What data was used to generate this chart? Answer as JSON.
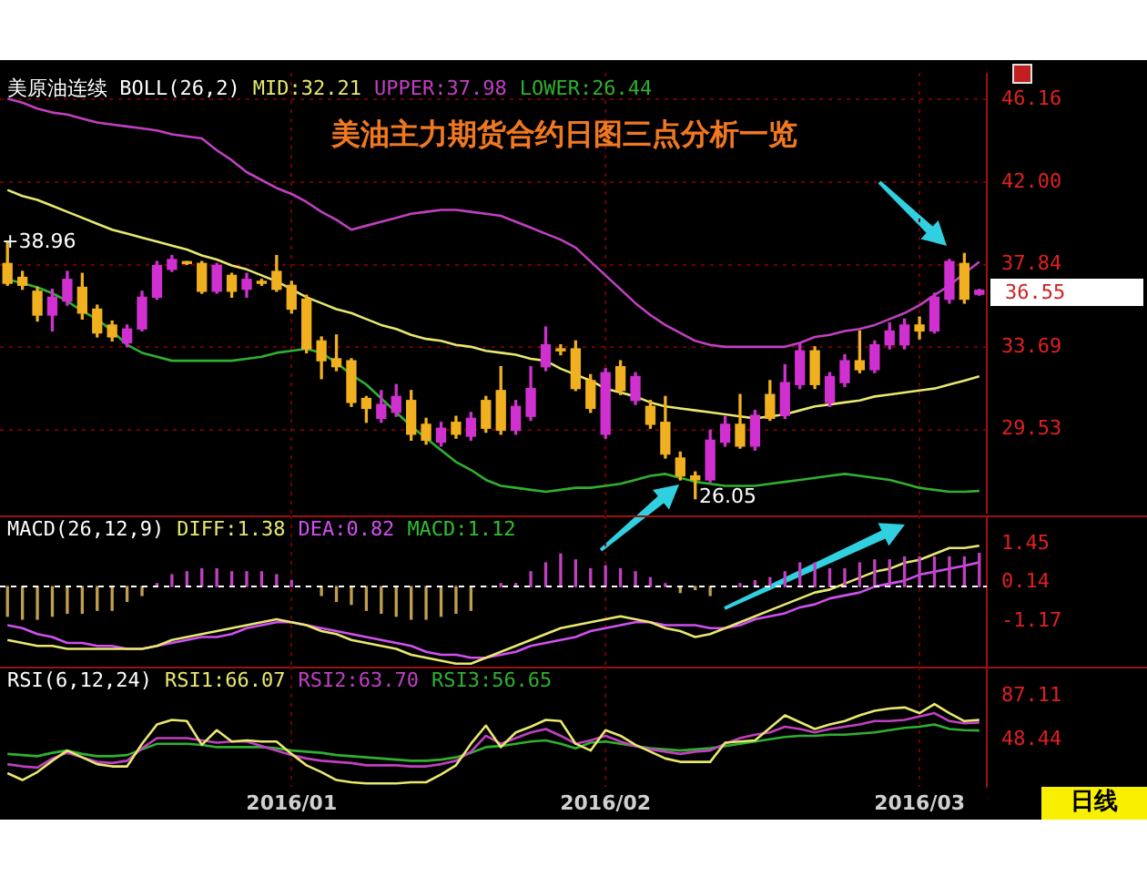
{
  "chart_data": [
    {
      "type": "candlestick",
      "title": "美油主力期货合约日图三点分析一览",
      "subtitle": "美原油连续 BOLL(26,2)",
      "categories": [
        null,
        null,
        null,
        null,
        null,
        null,
        null,
        null,
        null,
        null,
        null,
        null,
        null,
        null,
        null,
        null,
        null,
        null,
        null,
        "2016/01",
        null,
        null,
        null,
        null,
        null,
        null,
        null,
        null,
        null,
        null,
        null,
        null,
        null,
        null,
        null,
        null,
        null,
        null,
        null,
        null,
        "2016/02",
        null,
        null,
        null,
        null,
        null,
        null,
        null,
        null,
        null,
        null,
        null,
        null,
        null,
        null,
        null,
        null,
        null,
        null,
        null,
        null,
        "2016/03",
        null,
        null,
        null,
        null
      ],
      "ohlc": [
        [
          37.9,
          38.96,
          36.8,
          36.9
        ],
        [
          37.2,
          37.5,
          36.6,
          36.8
        ],
        [
          36.5,
          36.7,
          35.0,
          35.3
        ],
        [
          35.3,
          36.6,
          34.5,
          36.2
        ],
        [
          36.0,
          37.5,
          35.8,
          37.1
        ],
        [
          36.7,
          37.4,
          35.1,
          35.4
        ],
        [
          35.6,
          35.8,
          34.2,
          34.4
        ],
        [
          34.8,
          35.0,
          34.0,
          34.2
        ],
        [
          33.9,
          34.8,
          33.7,
          34.6
        ],
        [
          34.6,
          36.5,
          34.5,
          36.2
        ],
        [
          36.2,
          38.0,
          36.1,
          37.8
        ],
        [
          37.6,
          38.3,
          37.5,
          38.1
        ],
        [
          37.95,
          38.0,
          37.85,
          37.9
        ],
        [
          37.9,
          38.0,
          36.4,
          36.5
        ],
        [
          36.5,
          37.9,
          36.4,
          37.8
        ],
        [
          37.3,
          37.4,
          36.2,
          36.5
        ],
        [
          36.6,
          37.4,
          36.2,
          37.1
        ],
        [
          37.0,
          37.1,
          36.8,
          36.9
        ],
        [
          37.5,
          38.3,
          36.5,
          36.6
        ],
        [
          36.8,
          37.0,
          35.4,
          35.6
        ],
        [
          36.1,
          36.3,
          33.4,
          33.6
        ],
        [
          34.0,
          34.2,
          32.1,
          33.0
        ],
        [
          33.1,
          34.3,
          32.5,
          32.7
        ],
        [
          33.0,
          33.1,
          30.7,
          30.9
        ],
        [
          31.1,
          31.2,
          29.9,
          30.6
        ],
        [
          30.1,
          31.5,
          29.9,
          30.8
        ],
        [
          30.4,
          31.8,
          30.2,
          31.2
        ],
        [
          31.0,
          31.5,
          29.0,
          29.3
        ],
        [
          29.8,
          30.1,
          28.8,
          29.0
        ],
        [
          28.9,
          29.9,
          28.7,
          29.6
        ],
        [
          29.9,
          30.2,
          29.1,
          29.3
        ],
        [
          29.2,
          30.4,
          29.0,
          30.1
        ],
        [
          31.0,
          31.2,
          29.4,
          29.6
        ],
        [
          31.5,
          32.7,
          29.3,
          29.5
        ],
        [
          29.5,
          31.0,
          29.3,
          30.7
        ],
        [
          30.2,
          32.7,
          30.0,
          31.6
        ],
        [
          32.7,
          34.7,
          32.5,
          33.8
        ],
        [
          33.6,
          33.8,
          33.3,
          33.5
        ],
        [
          33.6,
          34.0,
          31.5,
          31.6
        ],
        [
          32.0,
          32.3,
          30.4,
          30.6
        ],
        [
          29.3,
          32.6,
          29.1,
          32.4
        ],
        [
          32.7,
          33.0,
          31.3,
          31.5
        ],
        [
          31.0,
          32.4,
          30.8,
          32.2
        ],
        [
          30.7,
          31.0,
          29.6,
          29.8
        ],
        [
          29.9,
          31.2,
          28.1,
          28.3
        ],
        [
          28.1,
          28.4,
          27.0,
          27.2
        ],
        [
          27.2,
          27.4,
          26.05,
          27.0
        ],
        [
          27.0,
          29.5,
          26.9,
          29.0
        ],
        [
          28.9,
          30.2,
          28.7,
          29.8
        ],
        [
          29.8,
          31.3,
          28.6,
          28.7
        ],
        [
          28.7,
          30.5,
          28.5,
          30.25
        ],
        [
          31.3,
          32.0,
          30.0,
          30.1
        ],
        [
          30.25,
          32.8,
          30.1,
          31.9
        ],
        [
          31.8,
          33.9,
          31.6,
          33.5
        ],
        [
          33.5,
          33.7,
          31.6,
          31.8
        ],
        [
          30.9,
          32.4,
          30.7,
          32.2
        ],
        [
          31.9,
          33.3,
          31.7,
          33.0
        ],
        [
          33.0,
          34.5,
          32.4,
          32.55
        ],
        [
          32.55,
          34.0,
          32.4,
          33.8
        ],
        [
          33.8,
          34.9,
          33.6,
          34.5
        ],
        [
          33.8,
          35.1,
          33.6,
          34.8
        ],
        [
          34.8,
          35.2,
          34.1,
          34.5
        ],
        [
          34.5,
          36.4,
          34.4,
          36.2
        ],
        [
          36.1,
          38.1,
          35.9,
          38.0
        ],
        [
          37.9,
          38.4,
          35.9,
          36.1
        ],
        [
          36.35,
          36.6,
          36.3,
          36.55
        ]
      ],
      "colors": [
        "#f0b020",
        "#f0b020",
        "#f0b020",
        "#d030d0",
        "#d030d0",
        "#f0b020",
        "#f0b020",
        "#f0b020",
        "#d030d0",
        "#d030d0",
        "#d030d0",
        "#d030d0",
        "#f0b020",
        "#f0b020",
        "#d030d0",
        "#f0b020",
        "#d030d0",
        "#f0b020",
        "#f0b020",
        "#f0b020",
        "#f0b020",
        "#f0b020",
        "#f0b020",
        "#f0b020",
        "#f0b020",
        "#d030d0",
        "#d030d0",
        "#f0b020",
        "#f0b020",
        "#d030d0",
        "#f0b020",
        "#d030d0",
        "#f0b020",
        "#f0b020",
        "#d030d0",
        "#d030d0",
        "#d030d0",
        "#f0b020",
        "#f0b020",
        "#f0b020",
        "#d030d0",
        "#f0b020",
        "#d030d0",
        "#f0b020",
        "#f0b020",
        "#f0b020",
        "#f0b020",
        "#d030d0",
        "#d030d0",
        "#f0b020",
        "#d030d0",
        "#f0b020",
        "#d030d0",
        "#d030d0",
        "#f0b020",
        "#d030d0",
        "#d030d0",
        "#f0b020",
        "#d030d0",
        "#d030d0",
        "#d030d0",
        "#f0b020",
        "#d030d0",
        "#d030d0",
        "#f0b020",
        "#d030d0"
      ],
      "series": [
        {
          "name": "MID:32.21",
          "type": "line",
          "color": "#e8e870",
          "values": [
            41.6,
            41.3,
            41.1,
            40.8,
            40.5,
            40.2,
            39.9,
            39.6,
            39.4,
            39.2,
            39.0,
            38.8,
            38.6,
            38.3,
            38.1,
            37.8,
            37.6,
            37.3,
            37.0,
            36.6,
            36.2,
            35.9,
            35.6,
            35.4,
            35.1,
            34.8,
            34.6,
            34.3,
            34.1,
            34.0,
            33.8,
            33.7,
            33.5,
            33.4,
            33.3,
            33.1,
            33.0,
            32.6,
            32.3,
            32.0,
            31.6,
            31.4,
            31.2,
            30.9,
            30.7,
            30.6,
            30.5,
            30.4,
            30.3,
            30.2,
            30.1,
            30.2,
            30.3,
            30.5,
            30.7,
            30.8,
            30.9,
            31.0,
            31.2,
            31.3,
            31.4,
            31.5,
            31.6,
            31.8,
            32.0,
            32.21
          ]
        },
        {
          "name": "UPPER:37.98",
          "type": "line",
          "color": "#c040c0",
          "values": [
            46.2,
            46.0,
            45.7,
            45.5,
            45.4,
            45.2,
            45.0,
            44.9,
            44.8,
            44.7,
            44.6,
            44.4,
            44.3,
            44.2,
            43.6,
            43.1,
            42.5,
            42.1,
            41.7,
            41.4,
            41.0,
            40.5,
            40.1,
            39.6,
            39.8,
            40.0,
            40.2,
            40.4,
            40.5,
            40.6,
            40.6,
            40.5,
            40.4,
            40.3,
            40.0,
            39.7,
            39.4,
            39.1,
            38.7,
            38.0,
            37.3,
            36.6,
            35.9,
            35.3,
            34.8,
            34.4,
            34.0,
            33.8,
            33.7,
            33.7,
            33.7,
            33.7,
            33.7,
            33.9,
            34.2,
            34.3,
            34.5,
            34.6,
            34.8,
            35.1,
            35.4,
            35.8,
            36.3,
            36.8,
            37.4,
            37.98
          ]
        },
        {
          "name": "LOWER:26.44",
          "type": "line",
          "color": "#30b030",
          "values": [
            37.1,
            36.9,
            36.7,
            36.4,
            36.0,
            35.5,
            35.1,
            34.5,
            33.8,
            33.4,
            33.2,
            33.0,
            33.0,
            33.0,
            33.0,
            33.0,
            33.1,
            33.2,
            33.4,
            33.5,
            33.6,
            33.4,
            32.9,
            32.3,
            31.8,
            31.1,
            30.4,
            29.7,
            29.1,
            28.5,
            27.9,
            27.5,
            27.0,
            26.7,
            26.6,
            26.5,
            26.4,
            26.5,
            26.6,
            26.6,
            26.7,
            26.8,
            27.0,
            27.2,
            27.3,
            27.1,
            26.9,
            26.8,
            26.7,
            26.7,
            26.7,
            26.8,
            26.9,
            27.0,
            27.1,
            27.2,
            27.3,
            27.2,
            27.1,
            27.0,
            26.8,
            26.6,
            26.5,
            26.4,
            26.4,
            26.44
          ]
        }
      ],
      "ylim": [
        25.3,
        47.5
      ],
      "yticks": [
        46.16,
        {
          "value": 42,
          "label": "42.00"
        },
        37.84,
        33.69,
        29.53
      ],
      "grid": true,
      "legend": "top left",
      "tick_labels": "y",
      "annotations": [
        "+38.96",
        "26.05",
        "36.55"
      ]
    },
    {
      "type": "bar",
      "subtitle": "MACD(26,12,9)",
      "categories": [
        null,
        null,
        null,
        null,
        null,
        null,
        null,
        null,
        null,
        null,
        null,
        null,
        null,
        null,
        null,
        null,
        null,
        null,
        null,
        "2016/01",
        null,
        null,
        null,
        null,
        null,
        null,
        null,
        null,
        null,
        null,
        null,
        null,
        null,
        null,
        null,
        null,
        null,
        null,
        null,
        null,
        "2016/02",
        null,
        null,
        null,
        null,
        null,
        null,
        null,
        null,
        null,
        null,
        null,
        null,
        null,
        null,
        null,
        null,
        null,
        null,
        null,
        null,
        "2016/03",
        null,
        null,
        null,
        null
      ],
      "series": [
        {
          "name": "DIFF:1.38",
          "type": "line",
          "color": "#e8e870",
          "values": [
            -1.8,
            -1.9,
            -2.0,
            -2.0,
            -2.1,
            -2.1,
            -2.1,
            -2.1,
            -2.1,
            -2.1,
            -2.0,
            -1.8,
            -1.7,
            -1.6,
            -1.5,
            -1.4,
            -1.3,
            -1.2,
            -1.1,
            -1.2,
            -1.3,
            -1.5,
            -1.6,
            -1.8,
            -1.9,
            -2.0,
            -2.1,
            -2.3,
            -2.4,
            -2.5,
            -2.6,
            -2.6,
            -2.4,
            -2.2,
            -2.0,
            -1.8,
            -1.6,
            -1.4,
            -1.3,
            -1.2,
            -1.1,
            -1.0,
            -1.1,
            -1.2,
            -1.4,
            -1.5,
            -1.7,
            -1.6,
            -1.4,
            -1.2,
            -1.0,
            -0.8,
            -0.6,
            -0.4,
            -0.2,
            -0.1,
            0.1,
            0.3,
            0.5,
            0.6,
            0.8,
            0.9,
            1.1,
            1.3,
            1.3,
            1.38
          ]
        },
        {
          "name": "DEA:0.82",
          "type": "line",
          "color": "#d050f0",
          "values": [
            -1.3,
            -1.4,
            -1.6,
            -1.7,
            -1.9,
            -1.9,
            -2.0,
            -2.0,
            -2.1,
            -2.1,
            -2.0,
            -1.9,
            -1.8,
            -1.7,
            -1.7,
            -1.6,
            -1.4,
            -1.3,
            -1.2,
            -1.2,
            -1.3,
            -1.4,
            -1.5,
            -1.6,
            -1.7,
            -1.8,
            -1.9,
            -2.0,
            -2.2,
            -2.3,
            -2.3,
            -2.4,
            -2.4,
            -2.3,
            -2.2,
            -2.0,
            -1.9,
            -1.8,
            -1.7,
            -1.5,
            -1.4,
            -1.3,
            -1.2,
            -1.2,
            -1.3,
            -1.3,
            -1.3,
            -1.4,
            -1.4,
            -1.3,
            -1.1,
            -1.0,
            -0.9,
            -0.7,
            -0.6,
            -0.4,
            -0.3,
            -0.2,
            0.0,
            0.1,
            0.2,
            0.4,
            0.5,
            0.6,
            0.7,
            0.82
          ]
        },
        {
          "name": "MACD:1.12",
          "type": "bar",
          "color": "#30c030",
          "colors": [
            "#c0a050",
            "#c0a050",
            "#c0a050",
            "#c0a050",
            "#c0a050",
            "#c0a050",
            "#c0a050",
            "#c0a050",
            "#c0a050",
            "#c0a050",
            "#c040c0",
            "#c040c0",
            "#c040c0",
            "#c040c0",
            "#c040c0",
            "#c040c0",
            "#c040c0",
            "#c040c0",
            "#c040c0",
            "#c040c0",
            "#c040c0",
            "#c0a050",
            "#c0a050",
            "#c0a050",
            "#c0a050",
            "#c0a050",
            "#c0a050",
            "#c0a050",
            "#c0a050",
            "#c0a050",
            "#c0a050",
            "#c0a050",
            "#c040c0",
            "#c040c0",
            "#c040c0",
            "#c040c0",
            "#c040c0",
            "#c040c0",
            "#c040c0",
            "#c040c0",
            "#c040c0",
            "#c040c0",
            "#c040c0",
            "#c040c0",
            "#c040c0",
            "#c0a050",
            "#c0a050",
            "#c0a050",
            "#c040c0",
            "#c040c0",
            "#c040c0",
            "#c040c0",
            "#c040c0",
            "#c040c0",
            "#c040c0",
            "#c040c0",
            "#c040c0",
            "#c040c0",
            "#c040c0",
            "#c040c0",
            "#c040c0",
            "#c040c0",
            "#c040c0",
            "#c040c0",
            "#c040c0",
            "#c040c0"
          ],
          "values": [
            -1.0,
            -1.1,
            -1.1,
            -1.0,
            -0.9,
            -0.9,
            -0.8,
            -0.8,
            -0.5,
            -0.3,
            0.1,
            0.4,
            0.5,
            0.6,
            0.6,
            0.5,
            0.5,
            0.5,
            0.4,
            0.2,
            0.0,
            -0.3,
            -0.5,
            -0.6,
            -0.8,
            -0.9,
            -1.0,
            -1.1,
            -1.1,
            -1.0,
            -0.9,
            -0.8,
            0.0,
            0.1,
            0.1,
            0.5,
            0.8,
            1.1,
            0.9,
            0.6,
            0.7,
            0.6,
            0.5,
            0.3,
            0.1,
            -0.2,
            -0.1,
            -0.3,
            0.0,
            0.1,
            0.2,
            0.3,
            0.5,
            0.8,
            0.8,
            0.6,
            0.6,
            0.8,
            0.9,
            0.9,
            1.0,
            1.0,
            1.0,
            1.0,
            1.0,
            1.12
          ]
        }
      ],
      "ylim": [
        -2.7,
        2.4
      ],
      "yticks": [
        1.45,
        0.14,
        -1.17
      ],
      "ref_lines": [
        {
          "axis": "y",
          "value": 0,
          "color": "#ffffff",
          "line_style": "dashed"
        }
      ],
      "grid": "x",
      "legend": "top left",
      "tick_labels": "y"
    },
    {
      "type": "line",
      "subtitle": "RSI(6,12,24)",
      "categories": [
        null,
        null,
        null,
        null,
        null,
        null,
        null,
        null,
        null,
        null,
        null,
        null,
        null,
        null,
        null,
        null,
        null,
        null,
        null,
        "2016/01",
        null,
        null,
        null,
        null,
        null,
        null,
        null,
        null,
        null,
        null,
        null,
        null,
        null,
        null,
        null,
        null,
        null,
        null,
        null,
        null,
        "2016/02",
        null,
        null,
        null,
        null,
        null,
        null,
        null,
        null,
        null,
        null,
        null,
        null,
        null,
        null,
        null,
        null,
        null,
        null,
        null,
        null,
        "2016/03",
        null,
        null,
        null,
        null
      ],
      "series": [
        {
          "name": "RSI1:66.07",
          "color": "#e8e870",
          "values": [
            19,
            13,
            20,
            30,
            39,
            33,
            27,
            25,
            25,
            45,
            62,
            66,
            65,
            44,
            57,
            47,
            48,
            47,
            47,
            36,
            26,
            20,
            13,
            11,
            10,
            10,
            10,
            11,
            11,
            18,
            26,
            45,
            61,
            42,
            55,
            60,
            66,
            65,
            45,
            39,
            57,
            52,
            44,
            38,
            32,
            29,
            29,
            29,
            46,
            47,
            48,
            59,
            70,
            64,
            58,
            62,
            65,
            70,
            74,
            76,
            77,
            72,
            80,
            72,
            65,
            66.07
          ]
        },
        {
          "name": "RSI2:63.70",
          "color": "#c040c0",
          "values": [
            27,
            25,
            24,
            32,
            37,
            33,
            29,
            28,
            30,
            41,
            50,
            50,
            50,
            48,
            46,
            47,
            47,
            43,
            39,
            35,
            32,
            30,
            29,
            28,
            26,
            26,
            26,
            25,
            25,
            27,
            30,
            38,
            52,
            45,
            50,
            55,
            58,
            52,
            45,
            48,
            52,
            47,
            43,
            40,
            38,
            36,
            38,
            39,
            45,
            50,
            53,
            55,
            60,
            58,
            55,
            58,
            60,
            62,
            65,
            65,
            66,
            69,
            72,
            65,
            63,
            63.7
          ]
        },
        {
          "name": "RSI3:56.65",
          "color": "#30b030",
          "values": [
            36,
            35,
            34,
            37,
            39,
            36,
            34,
            34,
            35,
            40,
            45,
            45,
            45,
            44,
            42,
            42,
            42,
            42,
            41,
            39,
            38,
            37,
            35,
            34,
            33,
            32,
            31,
            30,
            30,
            31,
            33,
            37,
            42,
            43,
            45,
            47,
            48,
            45,
            41,
            46,
            47,
            45,
            43,
            41,
            40,
            39,
            40,
            41,
            43,
            45,
            47,
            49,
            51,
            52,
            52,
            53,
            53,
            54,
            55,
            57,
            59,
            60,
            62,
            58,
            57,
            56.65
          ]
        }
      ],
      "ylim": [
        7,
        113
      ],
      "yticks": [
        87.11,
        48.44
      ],
      "grid": "x",
      "legend": "top left",
      "annotations": [
        "日线"
      ]
    }
  ]
}
